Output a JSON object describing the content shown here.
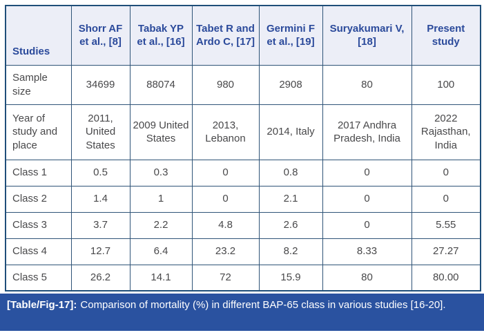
{
  "colors": {
    "header_bg": "#eceef7",
    "header_text": "#2b4a9b",
    "border": "#2e5377",
    "outer_border": "#1f4e79",
    "body_text": "#48484a",
    "caption_bg": "#2a52a0",
    "caption_text": "#ffffff",
    "page_bg": "#ffffff"
  },
  "table": {
    "columns": [
      "Studies",
      "Shorr AF et al., [8]",
      "Tabak YP et al., [16]",
      "Tabet R and Ardo C, [17]",
      "Germini F et al., [19]",
      "Suryakumari V, [18]",
      "Present study"
    ],
    "rows": [
      {
        "label": "Sample size",
        "values": [
          "34699",
          "88074",
          "980",
          "2908",
          "80",
          "100"
        ]
      },
      {
        "label": "Year of study and place",
        "values": [
          "2011, United States",
          "2009 United States",
          "2013, Lebanon",
          "2014, Italy",
          "2017 Andhra Pradesh, India",
          "2022 Rajasthan, India"
        ]
      },
      {
        "label": "Class 1",
        "values": [
          "0.5",
          "0.3",
          "0",
          "0.8",
          "0",
          "0"
        ]
      },
      {
        "label": "Class 2",
        "values": [
          "1.4",
          "1",
          "0",
          "2.1",
          "0",
          "0"
        ]
      },
      {
        "label": "Class 3",
        "values": [
          "3.7",
          "2.2",
          "4.8",
          "2.6",
          "0",
          "5.55"
        ]
      },
      {
        "label": "Class 4",
        "values": [
          "12.7",
          "6.4",
          "23.2",
          "8.2",
          "8.33",
          "27.27"
        ]
      },
      {
        "label": "Class 5",
        "values": [
          "26.2",
          "14.1",
          "72",
          "15.9",
          "80",
          "80.00"
        ]
      }
    ]
  },
  "caption": {
    "tag": "[Table/Fig-17]:",
    "text": "Comparison of mortality (%) in different BAP-65 class in various studies [16-20]."
  }
}
